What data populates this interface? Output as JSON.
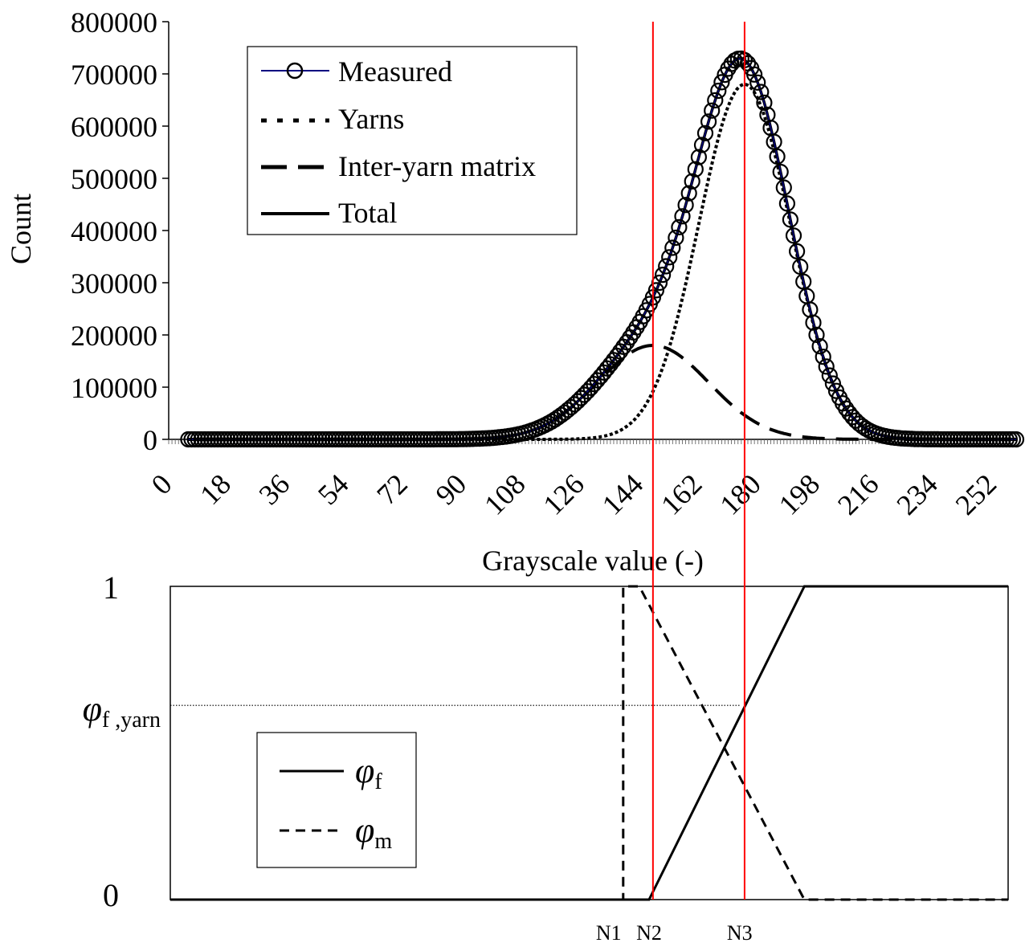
{
  "chart_data": [
    {
      "type": "line",
      "xlabel": "Grayscale value (-)",
      "ylabel": "Count",
      "xlim": [
        0,
        259
      ],
      "ylim": [
        0,
        800000
      ],
      "x_tick_labels": [
        "0",
        "18",
        "36",
        "54",
        "72",
        "90",
        "108",
        "126",
        "144",
        "162",
        "180",
        "198",
        "216",
        "234",
        "252"
      ],
      "y_tick_labels": [
        "0",
        "100000",
        "200000",
        "300000",
        "400000",
        "500000",
        "600000",
        "700000",
        "800000"
      ],
      "grid": false,
      "legend": "top-left",
      "series": [
        {
          "name": "Measured",
          "style": "circles-line",
          "color": "#000080",
          "model": {
            "components": [
              {
                "mu": 148,
                "sigma": 17,
                "amp": 180000
              },
              {
                "mu": 176,
                "sigma": 14,
                "amp": 680000
              }
            ]
          }
        },
        {
          "name": "Yarns",
          "style": "dotted",
          "color": "#000000",
          "model": {
            "mu": 176,
            "sigma": 14,
            "amp": 680000
          }
        },
        {
          "name": "Inter-yarn matrix",
          "style": "dashed",
          "color": "#000000",
          "model": {
            "mu": 148,
            "sigma": 17,
            "amp": 180000
          }
        },
        {
          "name": "Total",
          "style": "solid",
          "color": "#000000",
          "model": {
            "components": [
              {
                "mu": 148,
                "sigma": 17,
                "amp": 180000
              },
              {
                "mu": 176,
                "sigma": 14,
                "amp": 680000
              }
            ]
          }
        }
      ],
      "x_range_points": [
        6,
        259
      ]
    },
    {
      "type": "line",
      "ylim": [
        0,
        1
      ],
      "y_tick_labels": [
        "0",
        "1"
      ],
      "phi_yarn_label": {
        "symbol": "φ",
        "subscript": "f ,yarn"
      },
      "phi_yarn_value": 0.62,
      "x_markers": [
        {
          "label": "N1",
          "x": 140
        },
        {
          "label": "N2",
          "x": 148
        },
        {
          "label": "N3",
          "x": 176
        }
      ],
      "legend": "bottom-left",
      "series": [
        {
          "name": "φf",
          "symbol": "φ",
          "sub": "f",
          "style": "solid",
          "x": [
            0,
            148,
            196,
            259
          ],
          "y": [
            0,
            0,
            1,
            1
          ]
        },
        {
          "name": "φm",
          "symbol": "φ",
          "sub": "m",
          "style": "dashed",
          "x": [
            0,
            140,
            140,
            145,
            196,
            259
          ],
          "y": [
            0,
            0,
            1,
            1,
            0,
            0
          ]
        }
      ]
    }
  ],
  "colors": {
    "axis": "#000000",
    "vline": "#ff0000",
    "measured_line": "#000080"
  }
}
